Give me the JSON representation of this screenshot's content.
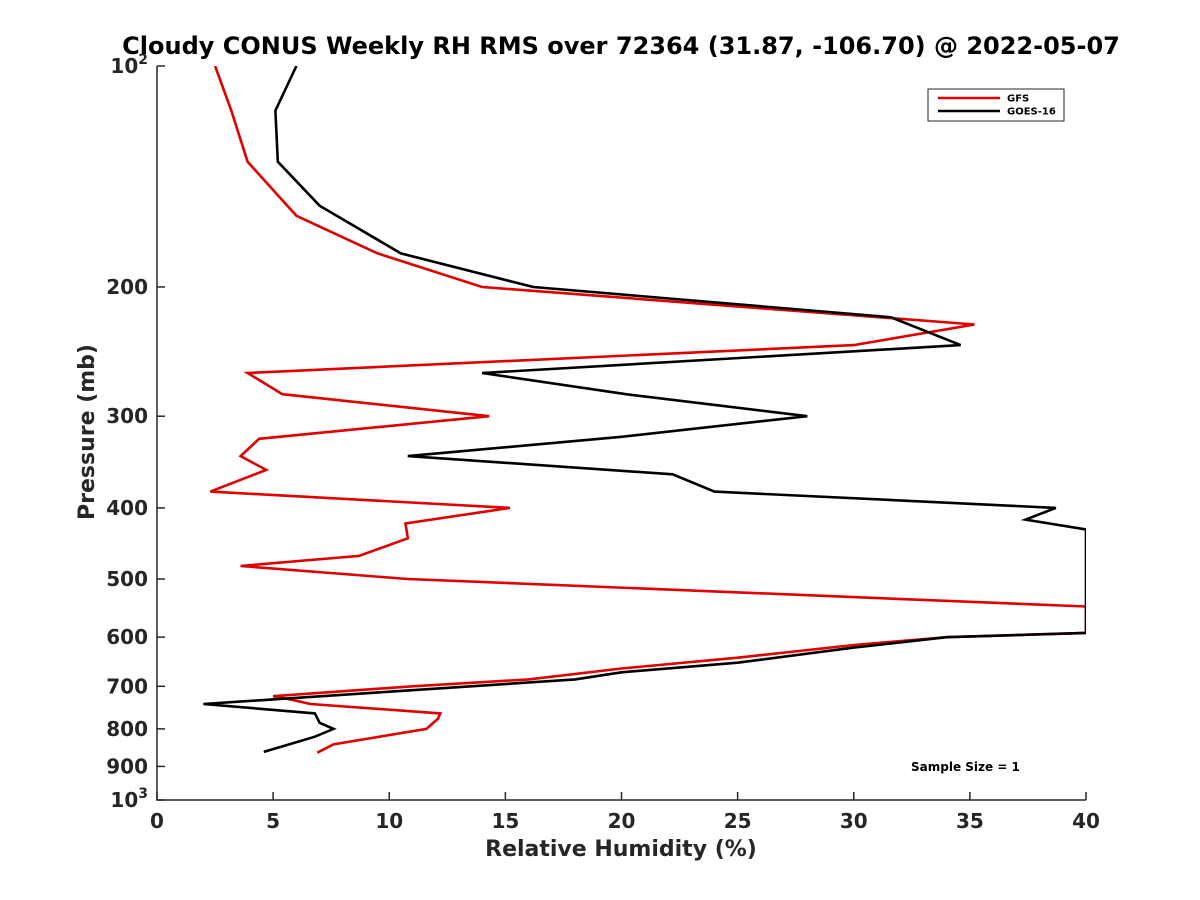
{
  "chart_data": {
    "type": "line",
    "title": "Cloudy CONUS Weekly RH RMS over 72364 (31.87, -106.70) @ 2022-05-07",
    "xlabel": "Relative Humidity (%)",
    "ylabel": "Pressure (mb)",
    "xlim": [
      0,
      40
    ],
    "ylim": [
      100,
      1000
    ],
    "y_scale": "log",
    "y_reversed": true,
    "x_ticks": [
      "0",
      "5",
      "10",
      "15",
      "20",
      "25",
      "30",
      "35",
      "40"
    ],
    "y_ticks": [
      {
        "value": 100,
        "base": "10",
        "exp": "2",
        "label": ""
      },
      {
        "value": 200,
        "base": "",
        "exp": "",
        "label": "200"
      },
      {
        "value": 300,
        "base": "",
        "exp": "",
        "label": "300"
      },
      {
        "value": 400,
        "base": "",
        "exp": "",
        "label": "400"
      },
      {
        "value": 500,
        "base": "",
        "exp": "",
        "label": "500"
      },
      {
        "value": 600,
        "base": "",
        "exp": "",
        "label": "600"
      },
      {
        "value": 700,
        "base": "",
        "exp": "",
        "label": "700"
      },
      {
        "value": 800,
        "base": "",
        "exp": "",
        "label": "800"
      },
      {
        "value": 900,
        "base": "",
        "exp": "",
        "label": "900"
      },
      {
        "value": 1000,
        "base": "10",
        "exp": "3",
        "label": ""
      }
    ],
    "grid": false,
    "legend_position": "top-right",
    "annotation": "Sample Size = 1",
    "series": [
      {
        "name": "GFS",
        "color": "#e00000",
        "points": [
          [
            2.5,
            100
          ],
          [
            3.2,
            115
          ],
          [
            3.9,
            135
          ],
          [
            6.0,
            160
          ],
          [
            9.5,
            180
          ],
          [
            14.0,
            200
          ],
          [
            35.2,
            225
          ],
          [
            30.0,
            240
          ],
          [
            3.9,
            262
          ],
          [
            5.4,
            280
          ],
          [
            14.3,
            300
          ],
          [
            4.4,
            322
          ],
          [
            3.6,
            340
          ],
          [
            4.7,
            355
          ],
          [
            2.3,
            380
          ],
          [
            15.2,
            400
          ],
          [
            10.7,
            420
          ],
          [
            10.8,
            440
          ],
          [
            8.7,
            465
          ],
          [
            3.6,
            480
          ],
          [
            10.8,
            500
          ],
          [
            40.0,
            545
          ],
          [
            40.0,
            592
          ],
          [
            34.0,
            600
          ],
          [
            30.0,
            615
          ],
          [
            25.0,
            640
          ],
          [
            20.0,
            662
          ],
          [
            16.0,
            685
          ],
          [
            11.0,
            700
          ],
          [
            5.0,
            722
          ],
          [
            5.8,
            730
          ],
          [
            6.6,
            740
          ],
          [
            12.2,
            762
          ],
          [
            12.1,
            775
          ],
          [
            11.6,
            800
          ],
          [
            7.6,
            840
          ],
          [
            6.9,
            862
          ]
        ]
      },
      {
        "name": "GOES-16",
        "color": "#000000",
        "points": [
          [
            6.0,
            100
          ],
          [
            5.1,
            115
          ],
          [
            5.2,
            135
          ],
          [
            7.0,
            155
          ],
          [
            10.5,
            180
          ],
          [
            16.2,
            200
          ],
          [
            31.6,
            220
          ],
          [
            34.6,
            240
          ],
          [
            14.0,
            262
          ],
          [
            20.2,
            280
          ],
          [
            28.0,
            300
          ],
          [
            20.0,
            320
          ],
          [
            10.8,
            340
          ],
          [
            22.2,
            360
          ],
          [
            24.0,
            380
          ],
          [
            38.7,
            400
          ],
          [
            37.4,
            415
          ],
          [
            40.0,
            428
          ],
          [
            40.0,
            592
          ],
          [
            34.0,
            600
          ],
          [
            30.0,
            620
          ],
          [
            25.0,
            650
          ],
          [
            20.0,
            670
          ],
          [
            18.0,
            685
          ],
          [
            10.0,
            712
          ],
          [
            2.0,
            740
          ],
          [
            6.8,
            762
          ],
          [
            7.0,
            785
          ],
          [
            7.6,
            800
          ],
          [
            6.8,
            820
          ],
          [
            4.6,
            860
          ]
        ]
      }
    ]
  }
}
